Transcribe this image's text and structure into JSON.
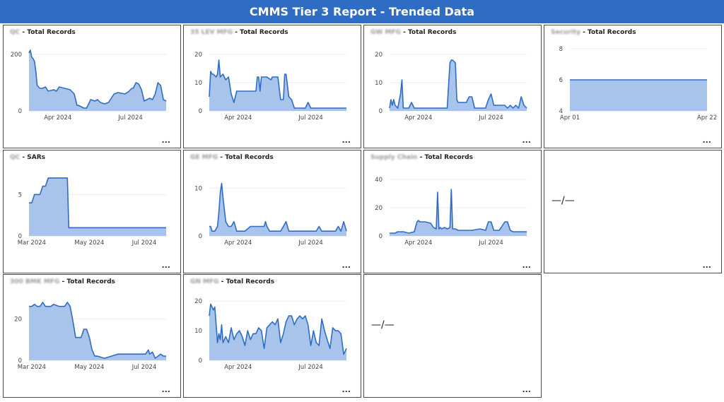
{
  "header": {
    "title": "CMMS Tier 3 Report - Trended Data"
  },
  "more_label": "...",
  "colors": {
    "header": "#2f6cc4",
    "line": "#2f6cc4",
    "fill": "#a9c4ea"
  },
  "tiles": [
    {
      "id": "t1",
      "prefix": "QC",
      "suffix": "Total Records",
      "empty": false,
      "chart_data": {
        "type": "area",
        "ylim": [
          0,
          220
        ],
        "yticks": [
          0,
          200
        ],
        "xlim": [
          0,
          100
        ],
        "xticks": [
          {
            "label": "Apr 2024",
            "x": 21
          },
          {
            "label": "Jul 2024",
            "x": 74
          }
        ],
        "x": [
          0,
          1,
          2,
          3,
          4,
          5,
          6,
          8,
          10,
          12,
          14,
          18,
          20,
          22,
          26,
          30,
          33,
          35,
          36,
          40,
          42,
          45,
          48,
          50,
          52,
          55,
          58,
          60,
          62,
          65,
          70,
          73,
          75,
          76,
          78,
          80,
          82,
          84,
          86,
          88,
          90,
          92,
          94,
          96,
          98,
          100
        ],
        "y": [
          205,
          215,
          190,
          185,
          175,
          140,
          90,
          80,
          80,
          85,
          70,
          75,
          70,
          85,
          80,
          75,
          60,
          20,
          20,
          10,
          10,
          40,
          35,
          40,
          30,
          25,
          30,
          45,
          60,
          65,
          60,
          70,
          80,
          80,
          100,
          95,
          75,
          35,
          40,
          45,
          40,
          60,
          100,
          90,
          40,
          35
        ]
      }
    },
    {
      "id": "t2",
      "prefix": "35 LEV MFG",
      "suffix": "Total Records",
      "empty": false,
      "chart_data": {
        "type": "area",
        "ylim": [
          0,
          22
        ],
        "yticks": [
          0,
          10,
          20
        ],
        "xlim": [
          0,
          100
        ],
        "xticks": [
          {
            "label": "Apr 2024",
            "x": 21
          },
          {
            "label": "Jul 2024",
            "x": 74
          }
        ],
        "x": [
          0,
          1,
          2,
          3,
          5,
          6,
          7,
          8,
          10,
          12,
          14,
          16,
          18,
          20,
          24,
          30,
          34,
          35,
          36,
          37,
          38,
          42,
          45,
          46,
          50,
          52,
          54,
          55,
          56,
          58,
          60,
          62,
          66,
          70,
          72,
          74,
          76,
          80,
          85,
          90,
          95,
          100
        ],
        "y": [
          5,
          14,
          13,
          13,
          12,
          13,
          18,
          12,
          13,
          11,
          12,
          6,
          3,
          7,
          7,
          7,
          7,
          12,
          12,
          7,
          12,
          12,
          11,
          12,
          12,
          4,
          4,
          13,
          13,
          5,
          4,
          1,
          1,
          1,
          3,
          1,
          1,
          1,
          1,
          1,
          1,
          1
        ]
      }
    },
    {
      "id": "t3",
      "prefix": "GW MFG",
      "suffix": "Total Records",
      "empty": false,
      "chart_data": {
        "type": "area",
        "ylim": [
          0,
          22
        ],
        "yticks": [
          0,
          10,
          20
        ],
        "xlim": [
          0,
          100
        ],
        "xticks": [
          {
            "label": "Apr 2024",
            "x": 21
          },
          {
            "label": "Jul 2024",
            "x": 74
          }
        ],
        "x": [
          0,
          1,
          2,
          3,
          4,
          6,
          8,
          9,
          10,
          11,
          12,
          14,
          16,
          18,
          20,
          24,
          30,
          36,
          40,
          42,
          44,
          45,
          46,
          48,
          49,
          50,
          52,
          54,
          56,
          58,
          60,
          62,
          66,
          70,
          72,
          74,
          76,
          80,
          82,
          84,
          86,
          88,
          90,
          92,
          94,
          96,
          98,
          100
        ],
        "y": [
          1,
          4,
          2,
          4,
          2,
          1,
          6,
          11,
          1,
          1,
          1,
          1,
          3,
          1,
          1,
          1,
          1,
          1,
          1,
          1,
          17,
          18,
          18,
          17,
          4,
          3,
          3,
          3,
          3,
          5,
          5,
          1,
          1,
          1,
          4,
          6,
          2,
          2,
          2,
          2,
          1,
          2,
          1,
          2,
          1,
          5,
          2,
          1
        ]
      }
    },
    {
      "id": "t4",
      "prefix": "Security",
      "suffix": "Total Records",
      "empty": false,
      "chart_data": {
        "type": "area",
        "ylim": [
          4,
          8
        ],
        "yticks": [
          4,
          6,
          8
        ],
        "xlim": [
          0,
          100
        ],
        "xticks": [
          {
            "label": "Apr 01",
            "x": 0
          },
          {
            "label": "Apr 22",
            "x": 100
          }
        ],
        "x": [
          0,
          100
        ],
        "y": [
          6,
          6
        ]
      }
    },
    {
      "id": "t5",
      "prefix": "QC",
      "suffix": "SARs",
      "empty": false,
      "chart_data": {
        "type": "area",
        "ylim": [
          0,
          7.5
        ],
        "yticks": [
          0,
          5
        ],
        "xlim": [
          0,
          100
        ],
        "xticks": [
          {
            "label": "Mar 2024",
            "x": 2
          },
          {
            "label": "May 2024",
            "x": 44
          },
          {
            "label": "Jul 2024",
            "x": 84
          }
        ],
        "x": [
          0,
          2,
          4,
          6,
          8,
          10,
          12,
          14,
          16,
          18,
          20,
          24,
          28,
          29,
          30,
          35,
          40,
          50,
          60,
          70,
          80,
          90,
          100
        ],
        "y": [
          4,
          4,
          5,
          5,
          5,
          6,
          6,
          7,
          7,
          7,
          7,
          7,
          7,
          1,
          1,
          1,
          1,
          1,
          1,
          1,
          1,
          1,
          1
        ]
      }
    },
    {
      "id": "t6",
      "prefix": "GE MFG",
      "suffix": "Total Records",
      "empty": false,
      "chart_data": {
        "type": "area",
        "ylim": [
          0,
          13
        ],
        "yticks": [
          0,
          10
        ],
        "xlim": [
          0,
          100
        ],
        "xticks": [
          {
            "label": "Apr 2024",
            "x": 21
          },
          {
            "label": "Jul 2024",
            "x": 74
          }
        ],
        "x": [
          0,
          1,
          2,
          4,
          6,
          7,
          8,
          9,
          10,
          12,
          14,
          16,
          18,
          20,
          22,
          26,
          30,
          34,
          38,
          40,
          41,
          42,
          44,
          46,
          48,
          52,
          54,
          56,
          58,
          60,
          62,
          66,
          70,
          74,
          78,
          80,
          82,
          84,
          86,
          88,
          90,
          92,
          94,
          96,
          98,
          100
        ],
        "y": [
          2,
          2,
          1,
          1,
          2,
          5,
          9,
          11,
          8,
          3,
          2,
          2,
          3,
          1,
          1,
          1,
          2,
          2,
          2,
          2,
          3,
          2,
          1,
          1,
          1,
          1,
          2,
          3,
          1,
          1,
          1,
          1,
          1,
          1,
          1,
          2,
          1,
          1,
          1,
          1,
          1,
          1,
          2,
          1,
          3,
          1
        ]
      }
    },
    {
      "id": "t7",
      "prefix": "Supply Chain",
      "suffix": "Total Records",
      "empty": false,
      "chart_data": {
        "type": "area",
        "ylim": [
          0,
          44
        ],
        "yticks": [
          0,
          20,
          40
        ],
        "xlim": [
          0,
          100
        ],
        "xticks": [
          {
            "label": "Apr 2024",
            "x": 21
          },
          {
            "label": "Jul 2024",
            "x": 74
          }
        ],
        "x": [
          0,
          4,
          6,
          10,
          14,
          18,
          20,
          21,
          22,
          26,
          30,
          32,
          34,
          35,
          36,
          37,
          38,
          40,
          42,
          44,
          45,
          46,
          48,
          50,
          54,
          60,
          66,
          70,
          72,
          74,
          76,
          80,
          84,
          86,
          88,
          90,
          92,
          94,
          96,
          100
        ],
        "y": [
          2,
          2,
          3,
          3,
          2,
          3,
          10,
          11,
          10,
          10,
          9,
          6,
          5,
          31,
          5,
          6,
          5,
          6,
          5,
          6,
          33,
          5,
          5,
          4,
          4,
          4,
          5,
          4,
          10,
          10,
          4,
          4,
          10,
          10,
          4,
          3,
          3,
          3,
          3,
          3
        ]
      }
    },
    {
      "id": "t8",
      "prefix": "",
      "suffix": "",
      "empty": true,
      "empty_text": "—/—"
    },
    {
      "id": "t9",
      "prefix": "300 BMK MFG",
      "suffix": "Total Records",
      "empty": false,
      "chart_data": {
        "type": "area",
        "ylim": [
          0,
          30
        ],
        "yticks": [
          0,
          20
        ],
        "xlim": [
          0,
          100
        ],
        "xticks": [
          {
            "label": "Mar 2024",
            "x": 2
          },
          {
            "label": "May 2024",
            "x": 44
          },
          {
            "label": "Jul 2024",
            "x": 84
          }
        ],
        "x": [
          0,
          2,
          4,
          6,
          8,
          10,
          12,
          14,
          16,
          18,
          22,
          26,
          28,
          30,
          32,
          34,
          36,
          38,
          40,
          42,
          44,
          46,
          48,
          50,
          55,
          60,
          65,
          70,
          75,
          80,
          85,
          87,
          88,
          90,
          92,
          94,
          96,
          98,
          100
        ],
        "y": [
          26,
          26,
          27,
          26,
          26,
          28,
          26,
          26,
          26,
          27,
          26,
          26,
          28,
          26,
          19,
          11,
          11,
          11,
          15,
          15,
          11,
          5,
          2,
          2,
          1,
          2,
          3,
          3,
          3,
          3,
          3,
          5,
          3,
          4,
          1,
          2,
          3,
          2,
          2
        ]
      }
    },
    {
      "id": "t10",
      "prefix": "GN MFG",
      "suffix": "Total Records",
      "empty": false,
      "chart_data": {
        "type": "area",
        "ylim": [
          0,
          21
        ],
        "yticks": [
          0,
          10,
          20
        ],
        "xlim": [
          0,
          100
        ],
        "xticks": [
          {
            "label": "Apr 2024",
            "x": 21
          },
          {
            "label": "Jul 2024",
            "x": 74
          }
        ],
        "x": [
          0,
          1,
          2,
          3,
          4,
          5,
          6,
          7,
          8,
          9,
          10,
          12,
          14,
          16,
          18,
          20,
          22,
          24,
          26,
          28,
          30,
          32,
          34,
          36,
          38,
          40,
          42,
          44,
          46,
          48,
          50,
          52,
          54,
          56,
          58,
          60,
          62,
          64,
          66,
          68,
          70,
          72,
          74,
          76,
          78,
          80,
          82,
          84,
          86,
          88,
          90,
          92,
          94,
          96,
          98,
          100
        ],
        "y": [
          15,
          19,
          18,
          17,
          18,
          12,
          6,
          9,
          7,
          12,
          6,
          8,
          6,
          11,
          7,
          9,
          10,
          8,
          5,
          10,
          7,
          9,
          9,
          11,
          10,
          4,
          11,
          12,
          13,
          12,
          14,
          6,
          9,
          13,
          15,
          15,
          12,
          14,
          15,
          14,
          15,
          12,
          5,
          10,
          6,
          5,
          14,
          10,
          7,
          4,
          11,
          10,
          10,
          9,
          2,
          4
        ]
      }
    },
    {
      "id": "t11",
      "prefix": "",
      "suffix": "",
      "empty": true,
      "empty_text": "—/—"
    }
  ]
}
